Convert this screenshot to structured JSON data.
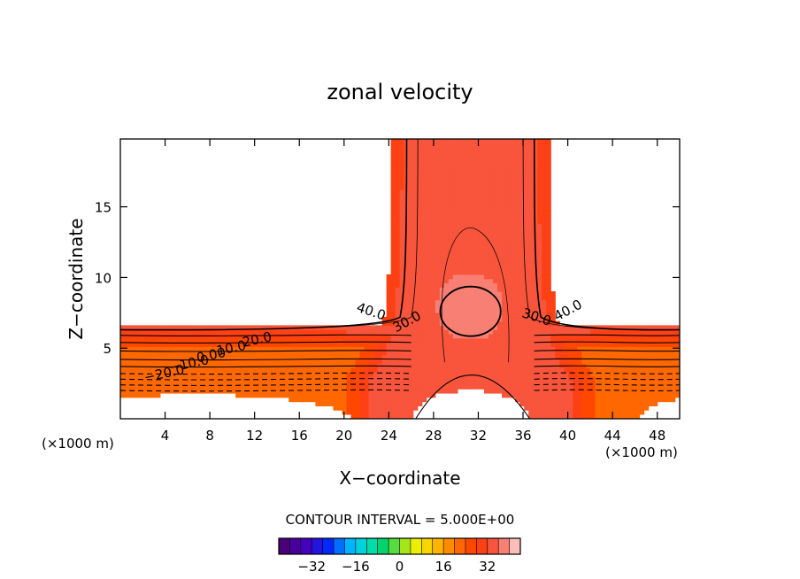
{
  "chart_data": {
    "type": "contour",
    "title": "zonal velocity",
    "xlabel": "X−coordinate",
    "ylabel": "Z−coordinate",
    "x_unit_left": "(×1000 m)",
    "x_unit_right": "(×1000 m)",
    "xlim": [
      0,
      50
    ],
    "ylim": [
      0,
      19.8
    ],
    "x_ticks": [
      4,
      8,
      12,
      16,
      20,
      24,
      28,
      32,
      36,
      40,
      44,
      48
    ],
    "y_ticks": [
      5,
      10,
      15
    ],
    "contour_labels": [
      {
        "text": "40.0",
        "x": 22.3,
        "z": 7.3
      },
      {
        "text": "30.0",
        "x": 25.8,
        "z": 6.6
      },
      {
        "text": "30.0",
        "x": 37.1,
        "z": 6.9
      },
      {
        "text": "40.0",
        "x": 40.2,
        "z": 7.4
      },
      {
        "text": "20.0",
        "x": 12.3,
        "z": 5.3
      },
      {
        "text": "10.0",
        "x": 10.0,
        "z": 4.7
      },
      {
        "text": "0.00",
        "x": 8.2,
        "z": 4.2
      },
      {
        "text": "−10.0",
        "x": 6.2,
        "z": 3.6
      },
      {
        "text": "−20.0",
        "x": 4.0,
        "z": 2.9
      }
    ],
    "contour_interval_label": "CONTOUR INTERVAL =  5.000E+00",
    "colorbar": {
      "min": -44,
      "max": 44,
      "step": 4,
      "ticks": [
        "−32",
        "−16",
        "0",
        "16",
        "32"
      ],
      "tick_values": [
        -32,
        -16,
        0,
        16,
        32
      ]
    }
  }
}
